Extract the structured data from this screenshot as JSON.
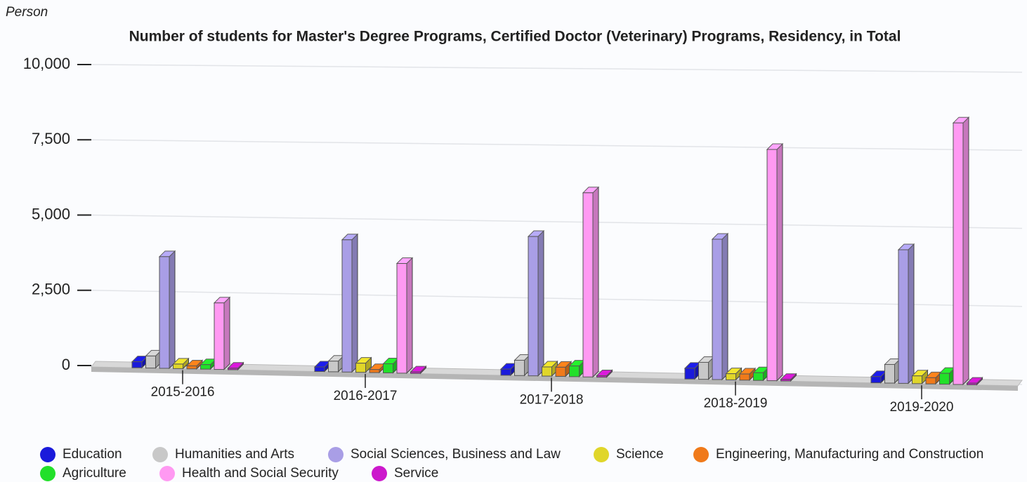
{
  "chart_data": {
    "type": "bar3d",
    "title": "Number of students for Master's Degree Programs, Certified Doctor (Veterinary) Programs, Residency, in Total",
    "y_axis_label": "Person",
    "categories": [
      "2015-2016",
      "2016-2017",
      "2017-2018",
      "2018-2019",
      "2019-2020"
    ],
    "series": [
      {
        "name": "Education",
        "color": "#1a1adb",
        "values": [
          200,
          150,
          200,
          350,
          200
        ]
      },
      {
        "name": "Humanities and Arts",
        "color": "#c8c8c8",
        "values": [
          400,
          350,
          500,
          550,
          600
        ]
      },
      {
        "name": "Social Sciences, Business and Law",
        "color": "#a99ee6",
        "values": [
          3700,
          4350,
          4550,
          4550,
          4300
        ]
      },
      {
        "name": "Science",
        "color": "#e0d62a",
        "values": [
          150,
          300,
          300,
          200,
          250
        ]
      },
      {
        "name": "Engineering, Manufacturing and Construction",
        "color": "#f07a1a",
        "values": [
          100,
          100,
          300,
          200,
          200
        ]
      },
      {
        "name": "Agriculture",
        "color": "#22e02a",
        "values": [
          150,
          300,
          350,
          250,
          350
        ]
      },
      {
        "name": "Health and Social Security",
        "color": "#ff99f2",
        "values": [
          2200,
          3600,
          6000,
          7480,
          8400
        ]
      },
      {
        "name": "Service",
        "color": "#cc18cc",
        "values": [
          50,
          50,
          50,
          50,
          50
        ]
      }
    ],
    "ylim": [
      0,
      10000
    ],
    "yticks": [
      0,
      {
        "value": 2500,
        "label": "2,500"
      },
      {
        "value": 5000,
        "label": "5,000"
      },
      {
        "value": 7500,
        "label": "7,500"
      },
      {
        "value": 10000,
        "label": "10,000"
      }
    ],
    "grid": true,
    "legend": "bottom"
  }
}
